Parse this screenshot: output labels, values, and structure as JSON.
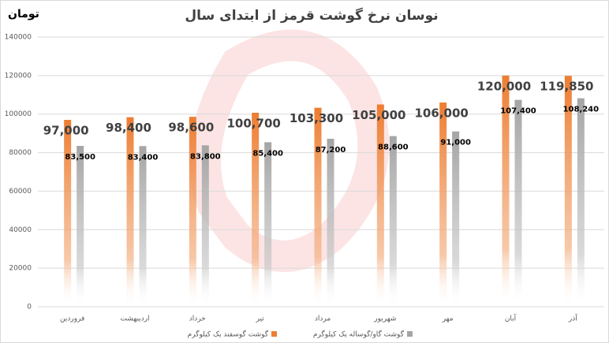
{
  "chart_data": {
    "type": "bar",
    "title": "نوسان نرخ گوشت قرمز از ابتدای سال",
    "y_label": "تومان",
    "categories": [
      "فروردین",
      "اردیبهشت",
      "خرداد",
      "تیر",
      "مرداد",
      "شهریور",
      "مهر",
      "آبان",
      "آذر"
    ],
    "series": [
      {
        "name": "گوشت گوسفند یک کیلوگرم",
        "color": "#ed7d31",
        "values": [
          97000,
          98400,
          98600,
          100700,
          103300,
          105000,
          106000,
          120000,
          119850
        ],
        "value_labels": [
          "97,000",
          "98,400",
          "98,600",
          "100,700",
          "103,300",
          "105,000",
          "106,000",
          "120,000",
          "119,850"
        ]
      },
      {
        "name": "گوشت گاو/گوساله یک کیلوگرم",
        "color": "#a5a5a5",
        "values": [
          83500,
          83400,
          83800,
          85400,
          87200,
          88600,
          91000,
          107400,
          108240
        ],
        "value_labels": [
          "83,500",
          "83,400",
          "83,800",
          "85,400",
          "87,200",
          "88,600",
          "91,000",
          "107,400",
          "108,240"
        ]
      }
    ],
    "ylim": [
      0,
      140000
    ],
    "yticks": [
      0,
      20000,
      40000,
      60000,
      80000,
      100000,
      120000,
      140000
    ],
    "grid": true,
    "legend": "bottom"
  }
}
